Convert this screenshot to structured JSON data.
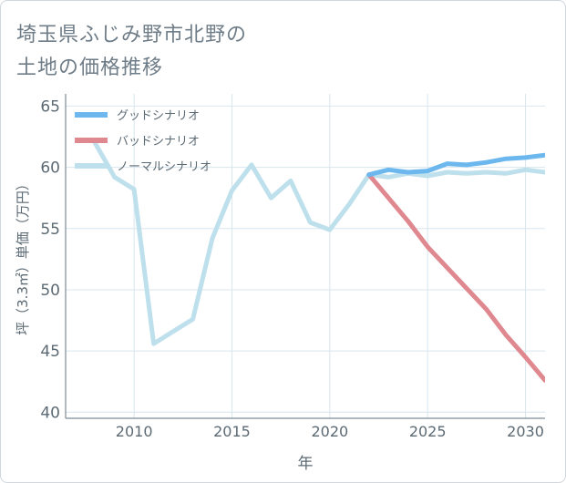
{
  "title_lines": [
    "埼玉県ふじみ野市北野の",
    "土地の価格推移"
  ],
  "colors": {
    "good": "#6cb8ee",
    "bad": "#e0888f",
    "normal": "#bde0ec",
    "grid": "#d8e6ee",
    "axis_text": "#5c6a74",
    "frame": "#cfd6dd"
  },
  "chart_data": {
    "type": "line",
    "title": "埼玉県ふじみ野市北野の土地の価格推移",
    "xlabel": "年",
    "ylabel": "坪（3.3㎡）単価（万円）",
    "xlim": [
      2006.5,
      2031
    ],
    "ylim": [
      39.5,
      66
    ],
    "x_ticks": [
      2010,
      2015,
      2020,
      2025,
      2030
    ],
    "y_ticks": [
      40,
      45,
      50,
      55,
      60,
      65
    ],
    "grid": true,
    "legend_position": "top-left",
    "series": [
      {
        "name": "グッドシナリオ",
        "color_key": "good",
        "x": [
          2022,
          2023,
          2024,
          2025,
          2026,
          2027,
          2028,
          2029,
          2030,
          2031
        ],
        "y": [
          59.4,
          59.8,
          59.6,
          59.7,
          60.3,
          60.2,
          60.4,
          60.7,
          60.8,
          61.0
        ]
      },
      {
        "name": "バッドシナリオ",
        "color_key": "bad",
        "x": [
          2022,
          2023,
          2024,
          2025,
          2026,
          2027,
          2028,
          2029,
          2030,
          2031
        ],
        "y": [
          59.4,
          57.5,
          55.6,
          53.5,
          51.8,
          50.1,
          48.4,
          46.3,
          44.5,
          42.6
        ]
      },
      {
        "name": "ノーマルシナリオ",
        "color_key": "normal",
        "x": [
          2008,
          2009,
          2010,
          2011,
          2012,
          2013,
          2014,
          2015,
          2016,
          2017,
          2018,
          2019,
          2020,
          2021,
          2022,
          2023,
          2024,
          2025,
          2026,
          2027,
          2028,
          2029,
          2030,
          2031
        ],
        "y": [
          62.0,
          59.2,
          58.2,
          45.6,
          46.6,
          47.6,
          54.2,
          58.1,
          60.2,
          57.5,
          58.9,
          55.5,
          54.9,
          57.0,
          59.4,
          59.2,
          59.5,
          59.3,
          59.6,
          59.5,
          59.6,
          59.5,
          59.8,
          59.6
        ]
      }
    ]
  }
}
